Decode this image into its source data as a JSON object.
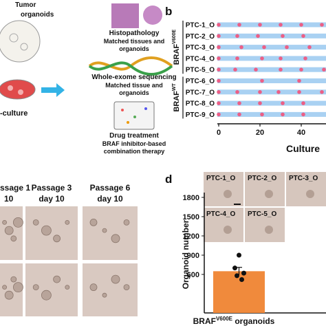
{
  "panel_a": {
    "tumor": "Tumor",
    "organoids": "organoids",
    "culture": "-culture",
    "steps": [
      {
        "title": "Histopathology",
        "lines": [
          "Matched tissues and",
          "organoids"
        ]
      },
      {
        "title": "Whole-exome sequencing",
        "lines": [
          "Matched tissue and",
          "organoids"
        ]
      },
      {
        "title": "Drug treatment",
        "lines": [
          "BRAF inhibitor-based",
          "combination therapy"
        ]
      }
    ]
  },
  "panel_b": {
    "label": "b",
    "groups": [
      {
        "base": "BRAF",
        "sup": "V600E",
        "rows": [
          {
            "name": "PTC-1_O",
            "days": [
              0,
              10,
              20,
              30,
              40,
              50
            ]
          },
          {
            "name": "PTC-2_O",
            "days": [
              0,
              9,
              19,
              31,
              41
            ]
          },
          {
            "name": "PTC-3_O",
            "days": [
              0,
              11,
              22,
              33,
              44
            ]
          },
          {
            "name": "PTC-4_O",
            "days": [
              0,
              9,
              21,
              30,
              42
            ]
          },
          {
            "name": "PTC-5_O",
            "days": [
              0,
              8,
              18,
              30,
              40,
              51
            ]
          }
        ]
      },
      {
        "base": "BRAF",
        "sup": "WT",
        "rows": [
          {
            "name": "PTC-6_O",
            "days": [
              0,
              21,
              39
            ]
          },
          {
            "name": "PTC-7_O",
            "days": [
              0,
              9,
              20,
              29,
              39,
              50
            ]
          },
          {
            "name": "PTC-8_O",
            "days": [
              0,
              10,
              20,
              31,
              41
            ]
          },
          {
            "name": "PTC-9_O",
            "days": [
              0,
              10,
              21,
              31,
              41
            ]
          }
        ]
      }
    ],
    "xlim": [
      0,
      52
    ],
    "xticks": [
      0,
      20,
      40
    ],
    "x_label": "Culture",
    "bar_color": "#a9d1f2",
    "dot_color": "#ec5f86"
  },
  "panel_c": {
    "passages": [
      {
        "title": "ssage 1",
        "day": "10"
      },
      {
        "title": "Passage 3",
        "day": "day 10"
      },
      {
        "title": "Passage 6",
        "day": "day 10"
      }
    ]
  },
  "panel_d": {
    "label": "d",
    "insets": [
      "PTC-1_O",
      "PTC-2_O",
      "PTC-3_O",
      "PTC-4_O",
      "PTC-5_O"
    ],
    "y_label": "Organoid number",
    "ylim": [
      0,
      1800
    ],
    "yticks": [
      600,
      900,
      1200,
      1500,
      1800
    ],
    "bar": {
      "value": 650,
      "error": 60,
      "color": "#f08a3c"
    },
    "points": [
      900,
      700,
      620,
      580,
      520
    ],
    "x_label": {
      "base": "BRAF",
      "sup": "V600E",
      "rest": " organoids"
    }
  }
}
